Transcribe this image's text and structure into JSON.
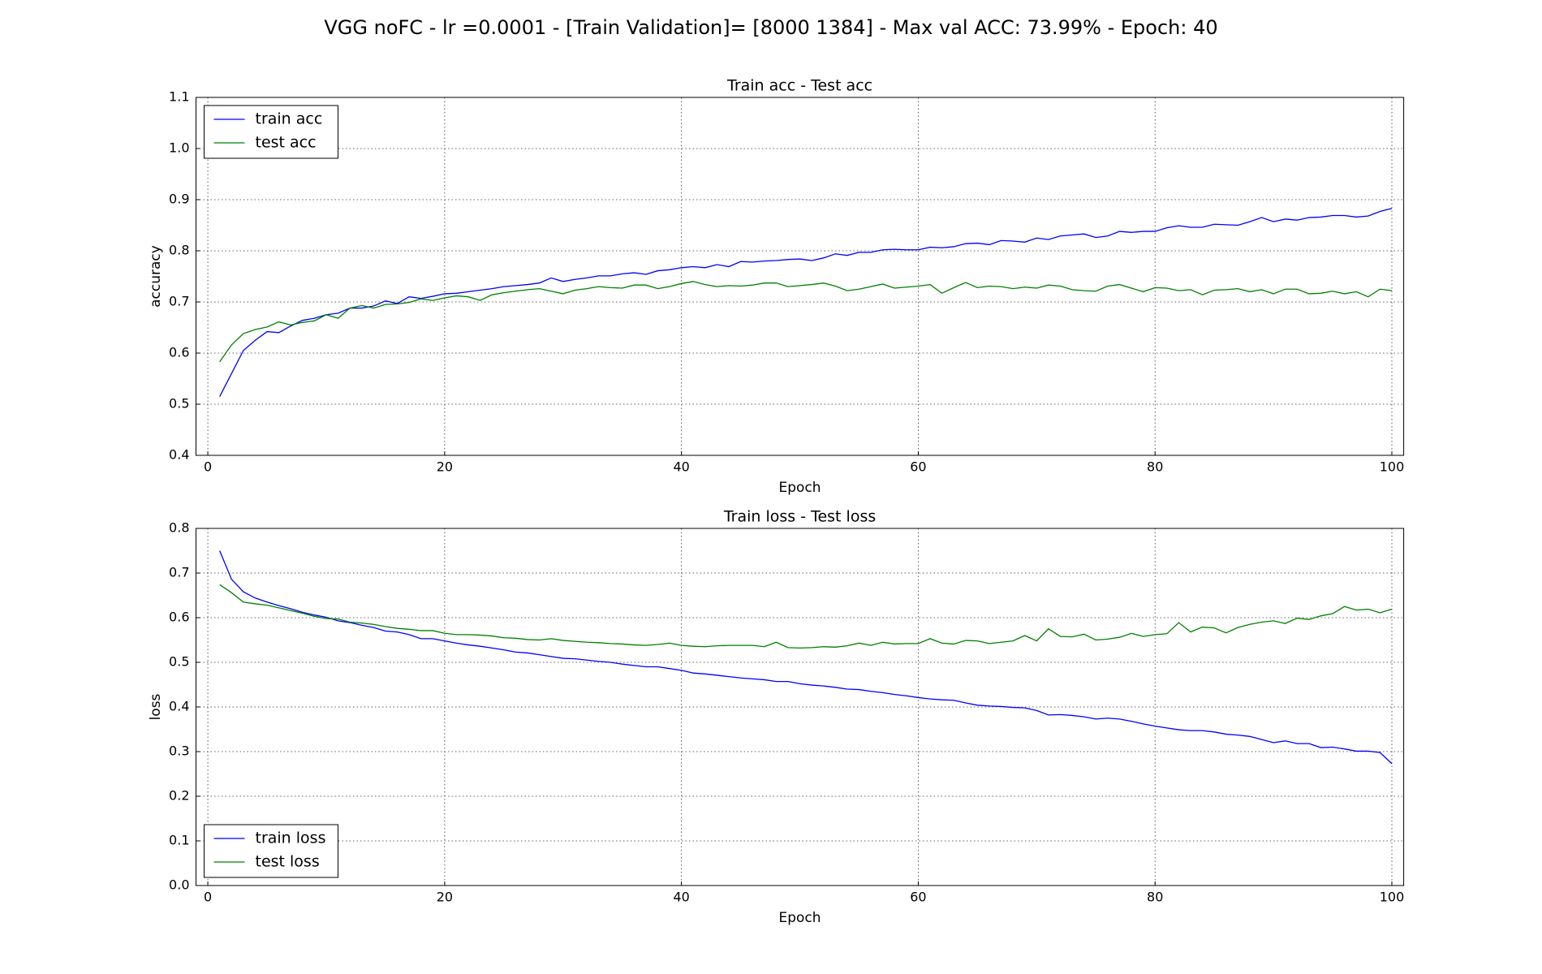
{
  "title": "VGG noFC - lr =0.0001 - [Train Validation]= [8000 1384] - Max val ACC: 73.99% -  Epoch: 40",
  "chart_data": [
    {
      "type": "line",
      "title": "Train acc - Test acc",
      "x_label": "Epoch",
      "y_label": "accuracy",
      "x": [
        1,
        2,
        3,
        4,
        5,
        6,
        7,
        8,
        9,
        10,
        11,
        12,
        13,
        14,
        15,
        16,
        17,
        18,
        19,
        20,
        21,
        22,
        23,
        24,
        25,
        26,
        27,
        28,
        29,
        30,
        31,
        32,
        33,
        34,
        35,
        36,
        37,
        38,
        39,
        40,
        41,
        42,
        43,
        44,
        45,
        46,
        47,
        48,
        49,
        50,
        51,
        52,
        53,
        54,
        55,
        56,
        57,
        58,
        59,
        60,
        61,
        62,
        63,
        64,
        65,
        66,
        67,
        68,
        69,
        70,
        71,
        72,
        73,
        74,
        75,
        76,
        77,
        78,
        79,
        80,
        81,
        82,
        83,
        84,
        85,
        86,
        87,
        88,
        89,
        90,
        91,
        92,
        93,
        94,
        95,
        96,
        97,
        98,
        99,
        100
      ],
      "series": [
        {
          "name": "train acc",
          "color": "#0000ff",
          "values": [
            0.515,
            0.56,
            0.605,
            0.625,
            0.642,
            0.64,
            0.653,
            0.664,
            0.668,
            0.675,
            0.678,
            0.688,
            0.688,
            0.692,
            0.702,
            0.697,
            0.71,
            0.707,
            0.711,
            0.716,
            0.717,
            0.72,
            0.723,
            0.726,
            0.73,
            0.732,
            0.734,
            0.737,
            0.747,
            0.74,
            0.744,
            0.747,
            0.751,
            0.751,
            0.755,
            0.757,
            0.754,
            0.761,
            0.763,
            0.767,
            0.769,
            0.767,
            0.773,
            0.769,
            0.779,
            0.778,
            0.78,
            0.781,
            0.783,
            0.784,
            0.781,
            0.786,
            0.794,
            0.791,
            0.797,
            0.797,
            0.802,
            0.803,
            0.802,
            0.802,
            0.807,
            0.806,
            0.808,
            0.814,
            0.815,
            0.812,
            0.82,
            0.819,
            0.817,
            0.825,
            0.822,
            0.829,
            0.831,
            0.833,
            0.826,
            0.829,
            0.838,
            0.836,
            0.838,
            0.838,
            0.845,
            0.849,
            0.846,
            0.846,
            0.852,
            0.851,
            0.85,
            0.857,
            0.865,
            0.857,
            0.862,
            0.86,
            0.865,
            0.866,
            0.869,
            0.869,
            0.866,
            0.868,
            0.877,
            0.883
          ]
        },
        {
          "name": "test acc",
          "color": "#008000",
          "values": [
            0.583,
            0.616,
            0.638,
            0.646,
            0.651,
            0.661,
            0.655,
            0.66,
            0.663,
            0.675,
            0.668,
            0.688,
            0.693,
            0.688,
            0.695,
            0.696,
            0.699,
            0.706,
            0.703,
            0.708,
            0.712,
            0.71,
            0.703,
            0.714,
            0.718,
            0.721,
            0.724,
            0.726,
            0.721,
            0.716,
            0.723,
            0.726,
            0.73,
            0.728,
            0.727,
            0.733,
            0.733,
            0.726,
            0.73,
            0.736,
            0.74,
            0.734,
            0.73,
            0.732,
            0.731,
            0.733,
            0.737,
            0.737,
            0.73,
            0.732,
            0.734,
            0.737,
            0.731,
            0.722,
            0.725,
            0.73,
            0.735,
            0.727,
            0.729,
            0.731,
            0.734,
            0.717,
            0.728,
            0.738,
            0.728,
            0.731,
            0.73,
            0.726,
            0.729,
            0.727,
            0.733,
            0.731,
            0.724,
            0.722,
            0.721,
            0.731,
            0.734,
            0.727,
            0.72,
            0.728,
            0.727,
            0.722,
            0.724,
            0.714,
            0.723,
            0.724,
            0.726,
            0.72,
            0.724,
            0.716,
            0.725,
            0.725,
            0.716,
            0.717,
            0.721,
            0.716,
            0.72,
            0.71,
            0.725,
            0.722
          ]
        }
      ],
      "xlim": [
        -1,
        101
      ],
      "xticks": [
        0,
        20,
        40,
        60,
        80,
        100
      ],
      "ylim": [
        0.4,
        1.1
      ],
      "yticks": [
        0.4,
        0.5,
        0.6,
        0.7,
        0.8,
        0.9,
        {
          "value": 1,
          "label": "1.0"
        },
        1.1
      ],
      "grid": true,
      "legend": "upper left"
    },
    {
      "type": "line",
      "title": "Train loss - Test loss",
      "x_label": "Epoch",
      "y_label": "loss",
      "x": [
        1,
        2,
        3,
        4,
        5,
        6,
        7,
        8,
        9,
        10,
        11,
        12,
        13,
        14,
        15,
        16,
        17,
        18,
        19,
        20,
        21,
        22,
        23,
        24,
        25,
        26,
        27,
        28,
        29,
        30,
        31,
        32,
        33,
        34,
        35,
        36,
        37,
        38,
        39,
        40,
        41,
        42,
        43,
        44,
        45,
        46,
        47,
        48,
        49,
        50,
        51,
        52,
        53,
        54,
        55,
        56,
        57,
        58,
        59,
        60,
        61,
        62,
        63,
        64,
        65,
        66,
        67,
        68,
        69,
        70,
        71,
        72,
        73,
        74,
        75,
        76,
        77,
        78,
        79,
        80,
        81,
        82,
        83,
        84,
        85,
        86,
        87,
        88,
        89,
        90,
        91,
        92,
        93,
        94,
        95,
        96,
        97,
        98,
        99,
        100
      ],
      "series": [
        {
          "name": "train loss",
          "color": "#0000ff",
          "values": [
            0.75,
            0.686,
            0.658,
            0.644,
            0.635,
            0.627,
            0.62,
            0.612,
            0.606,
            0.601,
            0.593,
            0.589,
            0.583,
            0.578,
            0.57,
            0.568,
            0.562,
            0.553,
            0.553,
            0.548,
            0.543,
            0.539,
            0.536,
            0.532,
            0.528,
            0.523,
            0.521,
            0.517,
            0.513,
            0.509,
            0.508,
            0.505,
            0.502,
            0.5,
            0.496,
            0.493,
            0.49,
            0.49,
            0.486,
            0.482,
            0.476,
            0.474,
            0.471,
            0.468,
            0.465,
            0.463,
            0.461,
            0.457,
            0.457,
            0.452,
            0.449,
            0.447,
            0.444,
            0.44,
            0.439,
            0.435,
            0.432,
            0.428,
            0.425,
            0.421,
            0.418,
            0.416,
            0.415,
            0.409,
            0.404,
            0.402,
            0.401,
            0.399,
            0.398,
            0.392,
            0.382,
            0.383,
            0.381,
            0.378,
            0.373,
            0.375,
            0.373,
            0.368,
            0.362,
            0.357,
            0.353,
            0.349,
            0.347,
            0.347,
            0.344,
            0.339,
            0.337,
            0.334,
            0.327,
            0.32,
            0.324,
            0.318,
            0.318,
            0.309,
            0.31,
            0.306,
            0.301,
            0.301,
            0.298,
            0.273
          ]
        },
        {
          "name": "test loss",
          "color": "#008000",
          "values": [
            0.674,
            0.656,
            0.635,
            0.631,
            0.628,
            0.622,
            0.616,
            0.61,
            0.603,
            0.598,
            0.597,
            0.59,
            0.588,
            0.585,
            0.58,
            0.576,
            0.574,
            0.571,
            0.571,
            0.565,
            0.562,
            0.562,
            0.561,
            0.559,
            0.555,
            0.554,
            0.551,
            0.55,
            0.553,
            0.549,
            0.547,
            0.545,
            0.544,
            0.542,
            0.541,
            0.539,
            0.538,
            0.54,
            0.543,
            0.538,
            0.536,
            0.535,
            0.537,
            0.538,
            0.538,
            0.538,
            0.535,
            0.545,
            0.533,
            0.532,
            0.533,
            0.535,
            0.534,
            0.537,
            0.543,
            0.538,
            0.545,
            0.541,
            0.542,
            0.542,
            0.553,
            0.543,
            0.541,
            0.549,
            0.548,
            0.542,
            0.545,
            0.548,
            0.56,
            0.548,
            0.575,
            0.558,
            0.557,
            0.563,
            0.55,
            0.552,
            0.556,
            0.565,
            0.558,
            0.562,
            0.564,
            0.589,
            0.568,
            0.579,
            0.577,
            0.566,
            0.578,
            0.585,
            0.59,
            0.593,
            0.587,
            0.599,
            0.596,
            0.604,
            0.609,
            0.625,
            0.617,
            0.619,
            0.611,
            0.619
          ]
        }
      ],
      "xlim": [
        -1,
        101
      ],
      "xticks": [
        0,
        20,
        40,
        60,
        80,
        100
      ],
      "ylim": [
        0,
        0.8
      ],
      "yticks": [
        {
          "value": 0,
          "label": "0.0"
        },
        0.1,
        0.2,
        0.3,
        0.4,
        0.5,
        0.6,
        0.7,
        0.8
      ],
      "grid": true,
      "legend": "lower left"
    }
  ]
}
